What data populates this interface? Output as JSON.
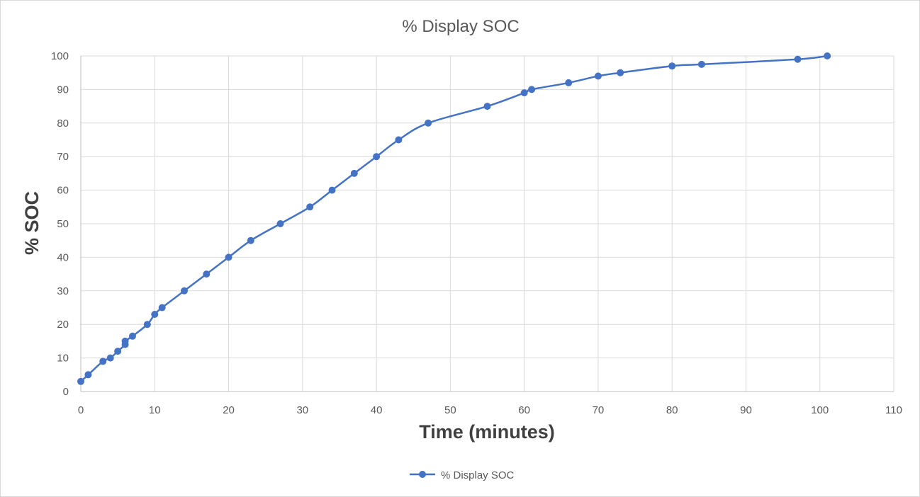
{
  "chart_data": {
    "type": "line",
    "title": "% Display SOC",
    "xlabel": "Time (minutes)",
    "ylabel": "% SOC",
    "xlim": [
      0,
      110
    ],
    "ylim": [
      0,
      100
    ],
    "x_ticks": [
      0,
      10,
      20,
      30,
      40,
      50,
      60,
      70,
      80,
      90,
      100,
      110
    ],
    "y_ticks": [
      0,
      10,
      20,
      30,
      40,
      50,
      60,
      70,
      80,
      90,
      100
    ],
    "grid": true,
    "legend_position": "bottom",
    "series": [
      {
        "name": "% Display SOC",
        "color": "#4472c4",
        "marker": "circle",
        "smooth": true,
        "x": [
          0,
          1,
          3,
          4,
          5,
          6,
          6,
          7,
          9,
          10,
          11,
          14,
          17,
          20,
          23,
          27,
          31,
          34,
          37,
          40,
          43,
          47,
          55,
          60,
          61,
          66,
          70,
          73,
          80,
          84,
          97,
          101
        ],
        "y": [
          3,
          5,
          9,
          10,
          12,
          14,
          15,
          16.5,
          20,
          23,
          25,
          30,
          35,
          40,
          45,
          50,
          55,
          60,
          65,
          70,
          75,
          80,
          85,
          89,
          90,
          92,
          94,
          95,
          97,
          97.5,
          99,
          100
        ]
      }
    ]
  }
}
